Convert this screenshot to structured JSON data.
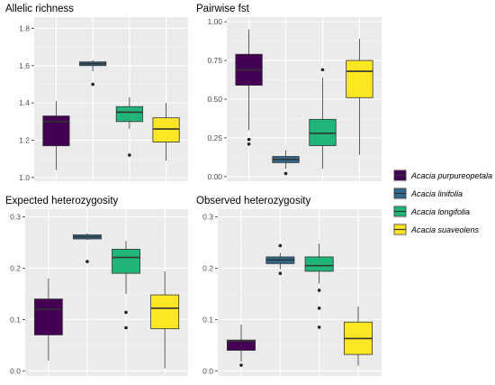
{
  "chart_data": {
    "type": "boxplot",
    "categories": [
      "Acacia purpureopetala",
      "Acacia linifolia",
      "Acacia longifolia",
      "Acacia suaveolens"
    ],
    "legend": {
      "placement": "right",
      "entries": [
        "Acacia purpureopetala",
        "Acacia linifolia",
        "Acacia longifolia",
        "Acacia suaveolens"
      ],
      "colors": [
        "#440154",
        "#31688E",
        "#21B57A",
        "#FDE725"
      ]
    },
    "grid": true,
    "panels": [
      {
        "title": "Allelic richness",
        "ylim": [
          0.98,
          1.86
        ],
        "yticks": [
          1.0,
          1.2,
          1.4,
          1.6,
          1.8
        ],
        "ytick_labels": [
          "1.0",
          "1.2",
          "1.4",
          "1.6",
          "1.8"
        ],
        "boxes": [
          {
            "min": 1.04,
            "q1": 1.17,
            "median": 1.3,
            "q3": 1.33,
            "max": 1.41,
            "outliers": []
          },
          {
            "min": 1.57,
            "q1": 1.6,
            "median": 1.61,
            "q3": 1.62,
            "max": 1.63,
            "outliers": [
              1.5
            ]
          },
          {
            "min": 1.26,
            "q1": 1.3,
            "median": 1.35,
            "q3": 1.38,
            "max": 1.43,
            "outliers": [
              1.12
            ]
          },
          {
            "min": 1.09,
            "q1": 1.19,
            "median": 1.26,
            "q3": 1.32,
            "max": 1.4,
            "outliers": []
          }
        ]
      },
      {
        "title": "Pairwise fst",
        "ylim": [
          -0.03,
          1.03
        ],
        "yticks": [
          0.0,
          0.25,
          0.5,
          0.75,
          1.0
        ],
        "ytick_labels": [
          "0.00",
          "0.25",
          "0.50",
          "0.75",
          "1.00"
        ],
        "boxes": [
          {
            "min": 0.3,
            "q1": 0.59,
            "median": 0.69,
            "q3": 0.79,
            "max": 0.95,
            "outliers": [
              0.24,
              0.21
            ]
          },
          {
            "min": 0.05,
            "q1": 0.09,
            "median": 0.11,
            "q3": 0.13,
            "max": 0.17,
            "outliers": [
              0.02
            ]
          },
          {
            "min": 0.05,
            "q1": 0.2,
            "median": 0.28,
            "q3": 0.37,
            "max": 0.64,
            "outliers": [
              0.69
            ]
          },
          {
            "min": 0.14,
            "q1": 0.51,
            "median": 0.68,
            "q3": 0.75,
            "max": 0.89,
            "outliers": []
          }
        ]
      },
      {
        "title": "Expected heterozygosity",
        "ylim": [
          -0.01,
          0.315
        ],
        "yticks": [
          0.0,
          0.1,
          0.2,
          0.3
        ],
        "ytick_labels": [
          "0.0",
          "0.1",
          "0.2",
          "0.3"
        ],
        "boxes": [
          {
            "min": 0.02,
            "q1": 0.07,
            "median": 0.12,
            "q3": 0.14,
            "max": 0.18,
            "outliers": []
          },
          {
            "min": 0.255,
            "q1": 0.257,
            "median": 0.261,
            "q3": 0.265,
            "max": 0.268,
            "outliers": [
              0.213
            ]
          },
          {
            "min": 0.15,
            "q1": 0.19,
            "median": 0.221,
            "q3": 0.237,
            "max": 0.253,
            "outliers": [
              0.114,
              0.084
            ]
          },
          {
            "min": 0.005,
            "q1": 0.082,
            "median": 0.122,
            "q3": 0.148,
            "max": 0.194,
            "outliers": []
          }
        ]
      },
      {
        "title": "Observed heterozygosity",
        "ylim": [
          -0.01,
          0.315
        ],
        "yticks": [
          0.0,
          0.1,
          0.2,
          0.3
        ],
        "ytick_labels": [
          "0.0",
          "0.1",
          "0.2",
          "0.3"
        ],
        "boxes": [
          {
            "min": 0.018,
            "q1": 0.04,
            "median": 0.058,
            "q3": 0.06,
            "max": 0.09,
            "outliers": [
              0.011
            ]
          },
          {
            "min": 0.198,
            "q1": 0.209,
            "median": 0.216,
            "q3": 0.222,
            "max": 0.23,
            "outliers": [
              0.244,
              0.19
            ]
          },
          {
            "min": 0.17,
            "q1": 0.194,
            "median": 0.205,
            "q3": 0.222,
            "max": 0.248,
            "outliers": [
              0.157,
              0.122,
              0.085
            ]
          },
          {
            "min": 0.01,
            "q1": 0.032,
            "median": 0.063,
            "q3": 0.095,
            "max": 0.125,
            "outliers": []
          }
        ]
      }
    ]
  }
}
